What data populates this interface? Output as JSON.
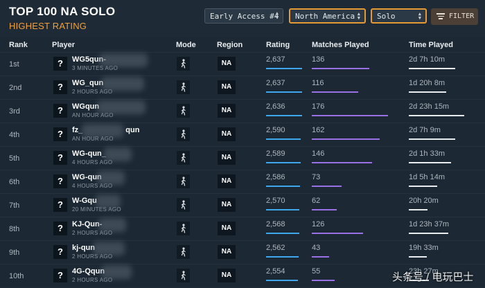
{
  "header": {
    "title": "TOP 100 NA SOLO",
    "subtitle": "HIGHEST RATING"
  },
  "filters": {
    "season": "Early Access #4",
    "region": "North America",
    "mode": "Solo",
    "filter_label": "FILTER"
  },
  "columns": {
    "rank": "Rank",
    "player": "Player",
    "mode": "Mode",
    "region": "Region",
    "rating": "Rating",
    "matches": "Matches Played",
    "time": "Time Played"
  },
  "rows": [
    {
      "rank": "1st",
      "name": "WG5qun-",
      "last_seen": "3 MINUTES AGO",
      "region": "NA",
      "rating": "2,637",
      "matches": "136",
      "time": "2d 7h 10m",
      "rating_fill": 0.98,
      "matches_fill": 0.56,
      "time_fill": 0.68
    },
    {
      "rank": "2nd",
      "name": "WG_qun",
      "last_seen": "2 HOURS AGO",
      "region": "NA",
      "rating": "2,637",
      "matches": "116",
      "time": "1d 20h 8m",
      "rating_fill": 0.98,
      "matches_fill": 0.45,
      "time_fill": 0.55
    },
    {
      "rank": "3rd",
      "name": "WGqun",
      "last_seen": "AN HOUR AGO",
      "region": "NA",
      "rating": "2,636",
      "matches": "176",
      "time": "2d 23h 15m",
      "rating_fill": 0.98,
      "matches_fill": 0.74,
      "time_fill": 0.82
    },
    {
      "rank": "4th",
      "name": "fz_",
      "name_tail": "qun",
      "last_seen": "AN HOUR AGO",
      "region": "NA",
      "rating": "2,590",
      "matches": "162",
      "time": "2d 7h 9m",
      "rating_fill": 0.94,
      "matches_fill": 0.66,
      "time_fill": 0.68
    },
    {
      "rank": "5th",
      "name": "WG-qun_",
      "last_seen": "4 HOURS AGO",
      "region": "NA",
      "rating": "2,589",
      "matches": "146",
      "time": "2d 1h 33m",
      "rating_fill": 0.94,
      "matches_fill": 0.59,
      "time_fill": 0.62
    },
    {
      "rank": "6th",
      "name": "WG-qun",
      "last_seen": "4 HOURS AGO",
      "region": "NA",
      "rating": "2,586",
      "matches": "73",
      "time": "1d 5h 14m",
      "rating_fill": 0.93,
      "matches_fill": 0.29,
      "time_fill": 0.42
    },
    {
      "rank": "7th",
      "name": "W-Gqu",
      "last_seen": "20 MINUTES AGO",
      "region": "NA",
      "rating": "2,570",
      "matches": "62",
      "time": "20h 20m",
      "rating_fill": 0.9,
      "matches_fill": 0.24,
      "time_fill": 0.28
    },
    {
      "rank": "8th",
      "name": "KJ-Qun-",
      "last_seen": "2 HOURS AGO",
      "region": "NA",
      "rating": "2,568",
      "matches": "126",
      "time": "1d 23h 37m",
      "rating_fill": 0.9,
      "matches_fill": 0.5,
      "time_fill": 0.58
    },
    {
      "rank": "9th",
      "name": "kj-qun",
      "last_seen": "2 HOURS AGO",
      "region": "NA",
      "rating": "2,562",
      "matches": "43",
      "time": "19h 33m",
      "rating_fill": 0.88,
      "matches_fill": 0.17,
      "time_fill": 0.27
    },
    {
      "rank": "10th",
      "name": "4G-Qqun",
      "last_seen": "2 HOURS AGO",
      "region": "NA",
      "rating": "2,554",
      "matches": "55",
      "time": "23h 27m",
      "rating_fill": 0.86,
      "matches_fill": 0.22,
      "time_fill": 0.3
    }
  ],
  "watermark": "头条号 / 电玩巴士",
  "icons": {
    "player_avatar": "question-mark-icon",
    "mode": "walking-person-icon",
    "filter": "filter-lines-icon",
    "select": "up-down-arrows-icon"
  },
  "colors": {
    "accent": "#f0a03c",
    "rating_bar": "#3fa7ee",
    "matches_bar": "#9b6fe6",
    "time_bar": "#e8ecef"
  }
}
